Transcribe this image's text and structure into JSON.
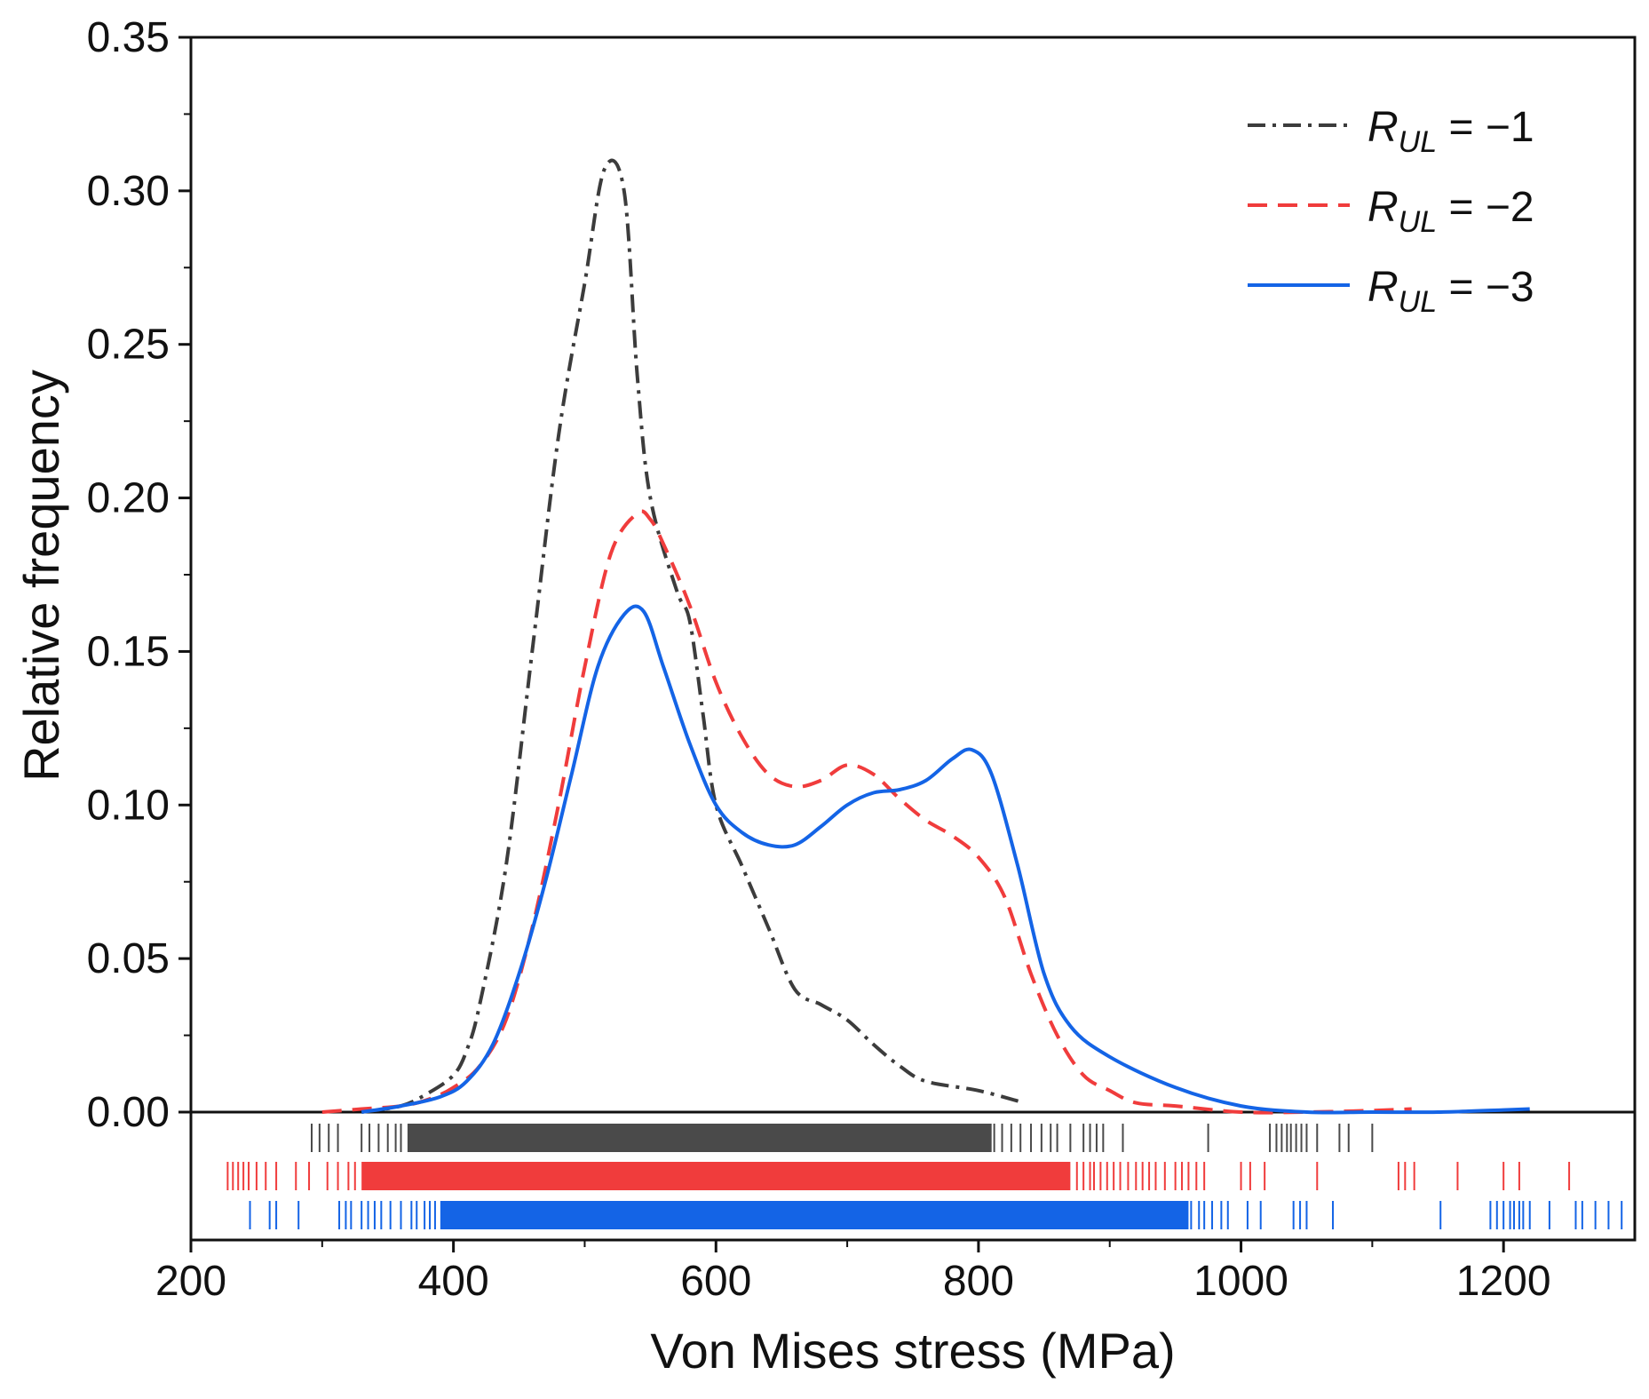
{
  "chart_data": {
    "type": "line",
    "xlabel": "Von Mises stress (MPa)",
    "ylabel": "Relative frequency",
    "xlim": [
      200,
      1300
    ],
    "ylim": [
      0,
      0.35
    ],
    "xticks": [
      "200",
      "400",
      "600",
      "800",
      "1000",
      "1200"
    ],
    "yticks": [
      "0.00",
      "0.05",
      "0.10",
      "0.15",
      "0.20",
      "0.25",
      "0.30",
      "0.35"
    ],
    "legend_position": "top-right",
    "series": [
      {
        "name": "R_UL = −1",
        "legend": {
          "symbol": "R",
          "sub": "UL",
          "rest": " = −1"
        },
        "color": "#3c3c3c",
        "style": "dash-dot",
        "x": [
          330,
          360,
          380,
          400,
          410,
          420,
          440,
          460,
          480,
          500,
          515,
          530,
          540,
          550,
          570,
          580,
          590,
          600,
          620,
          640,
          660,
          680,
          700,
          720,
          740,
          760,
          800,
          835
        ],
        "y": [
          0.0,
          0.002,
          0.006,
          0.012,
          0.02,
          0.035,
          0.08,
          0.15,
          0.22,
          0.27,
          0.307,
          0.3,
          0.24,
          0.2,
          0.17,
          0.16,
          0.13,
          0.1,
          0.08,
          0.06,
          0.04,
          0.035,
          0.03,
          0.022,
          0.015,
          0.01,
          0.007,
          0.003
        ]
      },
      {
        "name": "R_UL = −2",
        "legend": {
          "symbol": "R",
          "sub": "UL",
          "rest": " = −2"
        },
        "color": "#f03c3c",
        "style": "dashed",
        "x": [
          300,
          330,
          360,
          380,
          400,
          420,
          440,
          460,
          480,
          500,
          520,
          540,
          550,
          560,
          580,
          600,
          620,
          640,
          660,
          680,
          700,
          720,
          740,
          760,
          780,
          800,
          820,
          840,
          860,
          880,
          900,
          920,
          950,
          1000,
          1050,
          1100,
          1130
        ],
        "y": [
          0.0,
          0.001,
          0.002,
          0.004,
          0.008,
          0.015,
          0.03,
          0.06,
          0.1,
          0.145,
          0.182,
          0.195,
          0.193,
          0.185,
          0.165,
          0.14,
          0.122,
          0.11,
          0.106,
          0.108,
          0.113,
          0.11,
          0.102,
          0.095,
          0.09,
          0.083,
          0.07,
          0.045,
          0.025,
          0.012,
          0.007,
          0.003,
          0.002,
          0.0,
          0.0,
          0.0005,
          0.001
        ]
      },
      {
        "name": "R_UL = −3",
        "legend": {
          "symbol": "R",
          "sub": "UL",
          "rest": " = −3"
        },
        "color": "#1464e6",
        "style": "solid",
        "x": [
          330,
          360,
          390,
          410,
          430,
          450,
          470,
          490,
          510,
          530,
          545,
          560,
          580,
          600,
          620,
          640,
          660,
          680,
          700,
          720,
          740,
          760,
          780,
          795,
          810,
          830,
          850,
          870,
          900,
          950,
          1000,
          1050,
          1100,
          1150,
          1200,
          1220
        ],
        "y": [
          0.0,
          0.002,
          0.005,
          0.01,
          0.022,
          0.045,
          0.075,
          0.11,
          0.145,
          0.162,
          0.163,
          0.145,
          0.12,
          0.1,
          0.091,
          0.087,
          0.087,
          0.093,
          0.1,
          0.104,
          0.105,
          0.108,
          0.115,
          0.118,
          0.11,
          0.08,
          0.045,
          0.028,
          0.018,
          0.008,
          0.002,
          0.0,
          0.0,
          0.0,
          0.0007,
          0.001
        ]
      }
    ],
    "rug": [
      {
        "series": "R_UL = −1",
        "color": "#4a4a4a",
        "solid_range": [
          365,
          810
        ],
        "ticks": [
          292,
          298,
          305,
          312,
          330,
          336,
          343,
          350,
          356,
          360,
          812,
          818,
          825,
          832,
          840,
          848,
          855,
          860,
          870,
          880,
          885,
          890,
          895,
          910,
          975,
          1022,
          1027,
          1031,
          1035,
          1038,
          1042,
          1046,
          1050,
          1058,
          1075,
          1082,
          1100
        ]
      },
      {
        "series": "R_UL = −2",
        "color": "#f03c3c",
        "solid_range": [
          330,
          870
        ],
        "ticks": [
          228,
          232,
          236,
          240,
          244,
          250,
          257,
          265,
          280,
          290,
          304,
          312,
          320,
          325,
          875,
          880,
          885,
          888,
          893,
          898,
          903,
          908,
          914,
          920,
          925,
          930,
          935,
          942,
          950,
          955,
          960,
          966,
          972,
          1000,
          1007,
          1018,
          1058,
          1120,
          1125,
          1132,
          1165,
          1200,
          1212,
          1250
        ]
      },
      {
        "series": "R_UL = −3",
        "color": "#1464e6",
        "solid_range": [
          390,
          960
        ],
        "ticks": [
          245,
          260,
          265,
          282,
          313,
          318,
          322,
          330,
          335,
          340,
          345,
          352,
          360,
          368,
          372,
          378,
          382,
          386,
          962,
          968,
          972,
          978,
          985,
          990,
          1005,
          1015,
          1040,
          1045,
          1050,
          1070,
          1152,
          1190,
          1195,
          1200,
          1205,
          1208,
          1212,
          1215,
          1220,
          1235,
          1255,
          1260,
          1270,
          1280,
          1290
        ]
      }
    ]
  }
}
